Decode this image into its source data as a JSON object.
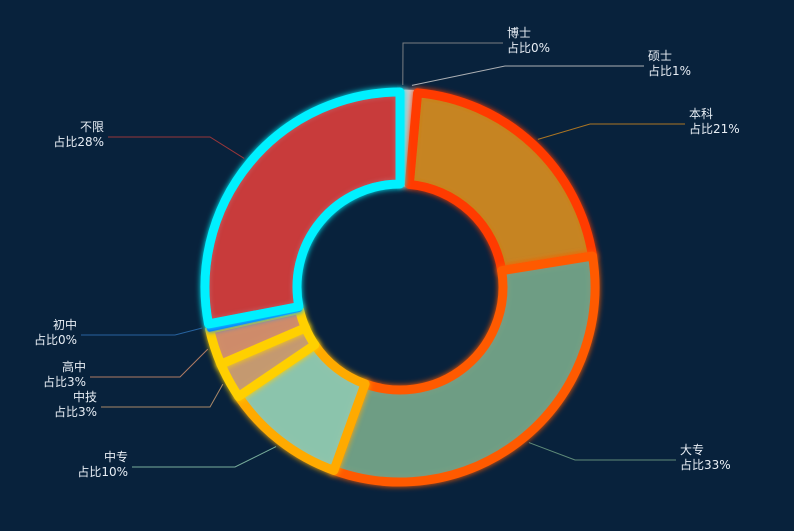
{
  "chart_data": {
    "type": "pie",
    "variant": "donut",
    "legend": "none",
    "categories": [
      "博士",
      "硕士",
      "本科",
      "大专",
      "中专",
      "中技",
      "高中",
      "初中",
      "不限"
    ],
    "values": [
      0,
      1,
      21,
      33,
      10,
      3,
      3,
      0,
      28
    ],
    "percent_labels": [
      "占比0%",
      "占比1%",
      "占比21%",
      "占比33%",
      "占比10%",
      "占比3%",
      "占比3%",
      "占比0%",
      "占比28%"
    ],
    "slice_colors": [
      "#8e8e8e",
      "#c9c9c9",
      "#c8841f",
      "#6f9e84",
      "#8cc6ac",
      "#c59a70",
      "#cf8c6a",
      "#2d6fb0",
      "#c9393a"
    ],
    "border_colors": [
      "#8e8e8e",
      "#c9c9c9",
      "#ff3a00",
      "#ff5a00",
      "#ffaa00",
      "#ffd000",
      "#ffd000",
      "#0d6eff",
      "#00f0ff"
    ],
    "background": "#08223c"
  }
}
